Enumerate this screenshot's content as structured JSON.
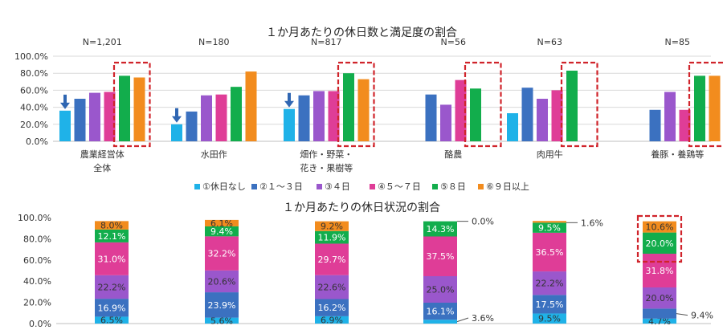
{
  "colors": [
    "#1fb2e8",
    "#3b71c0",
    "#9a57cc",
    "#df3d97",
    "#12ad4c",
    "#f28c1e"
  ],
  "highlight_color": "#d0242b",
  "arrow_color": "#2f66b2",
  "legend": [
    "①休日なし",
    "②１～３日",
    "③４日",
    "④５～７日",
    "⑤８日",
    "⑥９日以上"
  ],
  "chart_data": [
    {
      "type": "bar",
      "title": "１か月あたりの休日数と満足度の割合",
      "ylim": [
        0,
        100
      ],
      "y_ticks": [
        "0.0%",
        "20.0%",
        "40.0%",
        "60.0%",
        "80.0%",
        "100.0%"
      ],
      "grid": true,
      "groups": [
        {
          "category": [
            "農業経営体",
            "全体"
          ],
          "n": "N=1,201",
          "values": [
            36,
            50,
            57,
            58,
            77,
            75
          ],
          "highlight": [
            4,
            5
          ],
          "arrow": true
        },
        {
          "category": [
            "水田作"
          ],
          "n": "N=180",
          "values": [
            20,
            35,
            54,
            55,
            64,
            82
          ],
          "highlight": [],
          "arrow": true
        },
        {
          "category": [
            "畑作・野菜・",
            "花き・果樹等"
          ],
          "n": "N=817",
          "values": [
            38,
            54,
            59,
            59,
            80,
            73
          ],
          "highlight": [
            4,
            5
          ],
          "arrow": true
        },
        {
          "category": [
            "酪農"
          ],
          "n": "N=56",
          "values": [
            null,
            55,
            43,
            72,
            62,
            null
          ],
          "highlight": [
            4,
            5
          ],
          "arrow": false
        },
        {
          "category": [
            "肉用牛"
          ],
          "n": "N=63",
          "values": [
            33,
            63,
            50,
            60,
            83,
            null
          ],
          "highlight": [
            4,
            5
          ],
          "arrow": false
        },
        {
          "category": [
            "養豚・養鶏等"
          ],
          "n": "N=85",
          "values": [
            null,
            37,
            58,
            37,
            77,
            77
          ],
          "highlight": [
            4,
            5
          ],
          "arrow": false
        }
      ]
    },
    {
      "type": "stacked-bar",
      "title": "１か月あたりの休日状況の割合",
      "ylim": [
        0,
        100
      ],
      "y_ticks": [
        "0.0%",
        "20.0%",
        "40.0%",
        "60.0%",
        "80.0%",
        "100.0%"
      ],
      "grid": false,
      "stacks": [
        {
          "values": [
            6.5,
            16.9,
            22.2,
            31.0,
            12.1,
            8.0
          ],
          "labels": [
            "6.5%",
            "16.9%",
            "22.2%",
            "31.0%",
            "12.1%",
            "8.0%"
          ],
          "outside": []
        },
        {
          "values": [
            5.6,
            23.9,
            20.6,
            32.2,
            9.4,
            6.1
          ],
          "labels": [
            "5.6%",
            "23.9%",
            "20.6%",
            "32.2%",
            "9.4%",
            "6.1%"
          ],
          "outside": []
        },
        {
          "values": [
            6.9,
            16.2,
            22.6,
            29.7,
            11.9,
            9.2
          ],
          "labels": [
            "6.9%",
            "16.2%",
            "22.6%",
            "29.7%",
            "11.9%",
            "9.2%"
          ],
          "outside": []
        },
        {
          "values": [
            3.6,
            16.1,
            25.0,
            37.5,
            14.3,
            0.0
          ],
          "labels": [
            "3.6%",
            "16.1%",
            "25.0%",
            "37.5%",
            "14.3%",
            "0.0%"
          ],
          "outside": [
            0,
            5
          ]
        },
        {
          "values": [
            9.5,
            17.5,
            22.2,
            36.5,
            9.5,
            1.6
          ],
          "labels": [
            "9.5%",
            "17.5%",
            "22.2%",
            "36.5%",
            "9.5%",
            "1.6%"
          ],
          "outside": [
            5
          ]
        },
        {
          "values": [
            4.7,
            9.4,
            20.0,
            31.8,
            20.0,
            10.6
          ],
          "labels": [
            "4.7%",
            "9.4%",
            "20.0%",
            "31.8%",
            "20.0%",
            "10.6%"
          ],
          "outside": [
            1
          ],
          "highlight": [
            4,
            5
          ]
        }
      ]
    }
  ]
}
